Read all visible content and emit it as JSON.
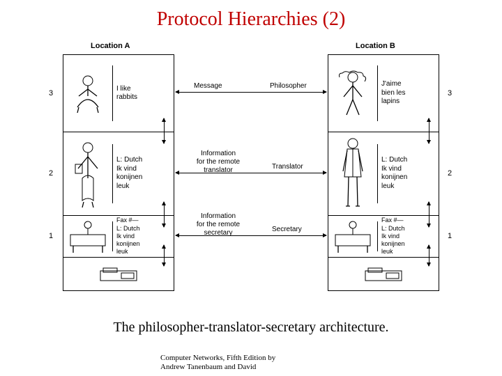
{
  "title": "Protocol Hierarchies (2)",
  "caption": "The philosopher-translator-secretary architecture.",
  "footer": {
    "line1": "Computer Networks, Fifth Edition by",
    "line2": "Andrew Tanenbaum and David"
  },
  "locations": {
    "a": "Location A",
    "b": "Location B"
  },
  "layers": {
    "l3": "3",
    "l2": "2",
    "l1": "1"
  },
  "peers": {
    "p3": "Philosopher",
    "p2": "Translator",
    "p1": "Secretary"
  },
  "mid": {
    "m3": "Message",
    "m2a": "Information",
    "m2b": "for the remote",
    "m2c": "translator",
    "m1a": "Information",
    "m1b": "for the remote",
    "m1c": "secretary"
  },
  "boxes": {
    "a3": "I like\nrabbits",
    "a2": "L: Dutch\nIk vind\nkonijnen\nleuk",
    "a1": "Fax #—\nL: Dutch\nIk vind\nkonijnen\nleuk",
    "b3": "J'aime\nbien les\nlapins",
    "b2": "L: Dutch\nIk vind\nkonijnen\nleuk",
    "b1": "Fax #—\nL: Dutch\nIk vind\nkonijnen\nleuk"
  },
  "style": {
    "title_color": "#c00000",
    "line_color": "#000000",
    "background": "#ffffff",
    "diagram_font": "Arial",
    "body_font": "Times New Roman",
    "title_fontsize": 28,
    "caption_fontsize": 20,
    "label_fontsize": 11,
    "box_fontsize": 10
  }
}
